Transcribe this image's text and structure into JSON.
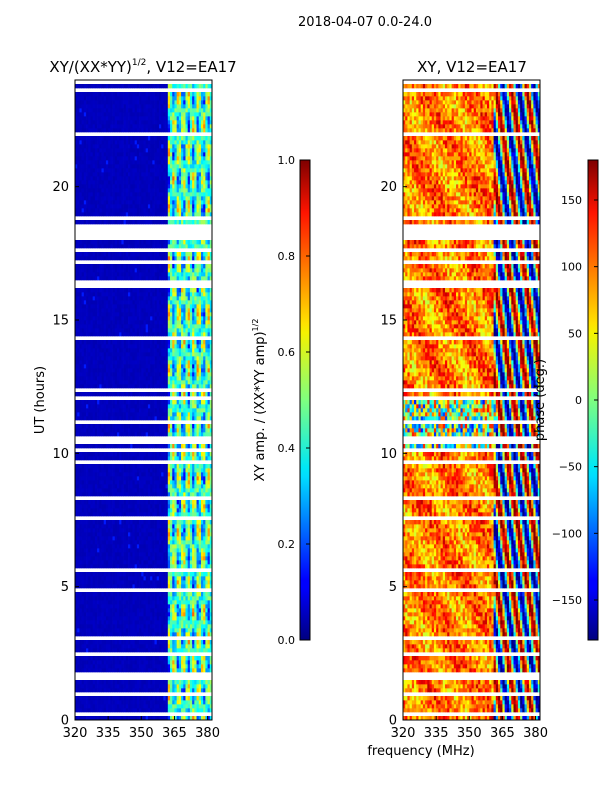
{
  "suptitle": "2018-04-07 0.0-24.0",
  "common_xlabel": "frequency (MHz)",
  "chart_data": [
    {
      "type": "heatmap",
      "id": "amplitude",
      "title": "XY/(XX*YY)",
      "title_sup": "1/2",
      "title_suffix": ", V12=EA17",
      "xlabel": "",
      "ylabel": "UT (hours)",
      "xlim": [
        320,
        382
      ],
      "ylim": [
        0,
        24
      ],
      "xticks": [
        320,
        335,
        350,
        365,
        380
      ],
      "yticks": [
        0,
        5,
        10,
        15,
        20
      ],
      "data_description": "Normalized XY amplitude; mostly near 0.05 (dark blue) for 320-362 MHz, with striped high values (0.3-0.8) in the 362-382 MHz band; frequent white gaps (flagged times).",
      "background_level": 0.05,
      "active_band_mhz": [
        362,
        382
      ],
      "colorbar": {
        "label": "XY amp. / (XX*YY amp)",
        "label_sup": "1/2",
        "range": [
          0.0,
          1.0
        ],
        "ticks": [
          "0.0",
          "0.2",
          "0.4",
          "0.6",
          "0.8",
          "1.0"
        ]
      }
    },
    {
      "type": "heatmap",
      "id": "phase",
      "title": "XY, V12=EA17",
      "xlabel": "",
      "ylabel": "",
      "xlim": [
        320,
        382
      ],
      "ylim": [
        0,
        24
      ],
      "xticks": [
        320,
        335,
        350,
        365,
        380
      ],
      "yticks": [
        0,
        5,
        10,
        15,
        20
      ],
      "data_description": "XY phase in degrees; mostly +40 to +140 (yellow-orange-red), a cooler noisy patch between 10-12 UT, and wrapping phase structure (blue/red) above 360 MHz.",
      "colorbar": {
        "label": "phase (deg.)",
        "range": [
          -180,
          180
        ],
        "ticks": [
          "150",
          "100",
          "50",
          "0",
          "−50",
          "−100",
          "−150"
        ]
      }
    }
  ]
}
